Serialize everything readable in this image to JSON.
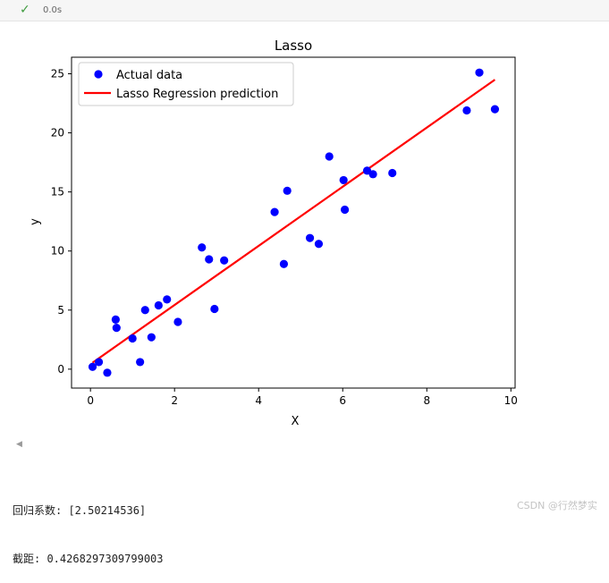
{
  "status": {
    "check_icon": "check-icon",
    "time": "0.0s"
  },
  "chart_data": {
    "type": "scatter",
    "title": "Lasso",
    "xlabel": "X",
    "ylabel": "y",
    "xlim": [
      -0.45,
      10.1
    ],
    "ylim": [
      -1.6,
      26.4
    ],
    "xticks": [
      0,
      2,
      4,
      6,
      8,
      10
    ],
    "yticks": [
      0,
      5,
      10,
      15,
      20,
      25
    ],
    "legend_position": "top-left",
    "series": [
      {
        "name": "Actual data",
        "kind": "scatter",
        "color": "#0000ff",
        "points": [
          [
            0.05,
            0.2
          ],
          [
            0.2,
            0.6
          ],
          [
            0.4,
            -0.3
          ],
          [
            0.6,
            4.2
          ],
          [
            0.62,
            3.5
          ],
          [
            1.0,
            2.6
          ],
          [
            1.18,
            0.6
          ],
          [
            1.3,
            5.0
          ],
          [
            1.45,
            2.7
          ],
          [
            1.62,
            5.4
          ],
          [
            1.82,
            5.9
          ],
          [
            2.08,
            4.0
          ],
          [
            2.65,
            10.3
          ],
          [
            2.82,
            9.3
          ],
          [
            2.95,
            5.1
          ],
          [
            3.18,
            9.2
          ],
          [
            4.38,
            13.3
          ],
          [
            4.6,
            8.9
          ],
          [
            4.68,
            15.1
          ],
          [
            5.22,
            11.1
          ],
          [
            5.43,
            10.6
          ],
          [
            5.68,
            18.0
          ],
          [
            6.02,
            16.0
          ],
          [
            6.05,
            13.5
          ],
          [
            6.58,
            16.8
          ],
          [
            6.72,
            16.5
          ],
          [
            7.18,
            16.6
          ],
          [
            8.95,
            21.9
          ],
          [
            9.25,
            25.1
          ],
          [
            9.62,
            22.0
          ]
        ]
      },
      {
        "name": "Lasso Regression prediction",
        "kind": "line",
        "color": "#ff0000",
        "points": [
          [
            0.05,
            0.55
          ],
          [
            9.62,
            24.5
          ]
        ]
      }
    ]
  },
  "output": {
    "coef_line": "回归系数: [2.50214536]",
    "intercept_line": "截距: 0.4268297309799003"
  },
  "watermark": "CSDN @行然梦实"
}
